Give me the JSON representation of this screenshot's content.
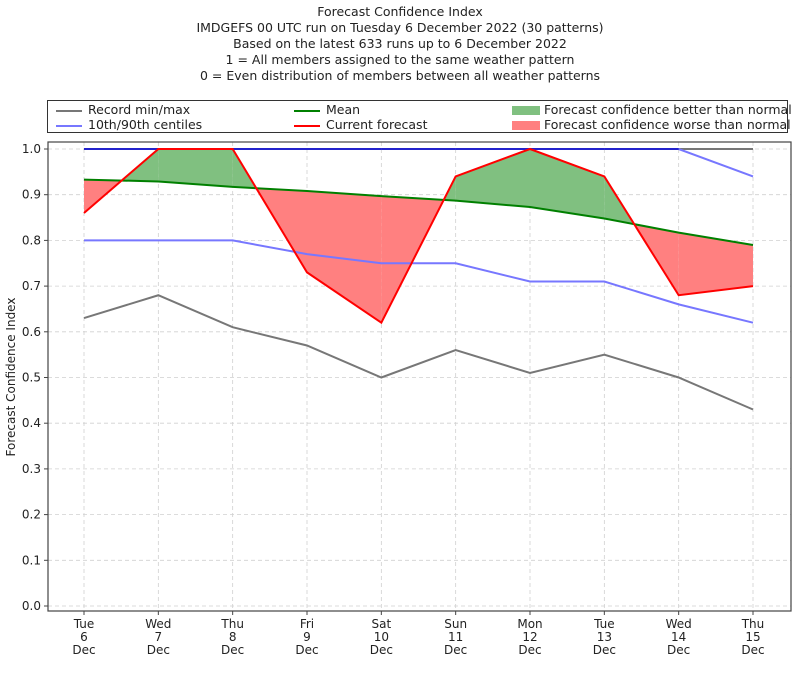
{
  "titles": [
    "Forecast Confidence Index",
    "IMDGEFS 00 UTC run on Tuesday 6 December 2022 (30 patterns)",
    "Based on the latest 633 runs up to 6 December 2022",
    "1 = All members assigned to the same weather pattern",
    "0 = Even distribution of members between all weather patterns"
  ],
  "legend": {
    "record": "Record min/max",
    "centiles": "10th/90th centiles",
    "mean": "Mean",
    "current": "Current forecast",
    "better": "Forecast confidence better than normal",
    "worse": "Forecast confidence worse than normal"
  },
  "colors": {
    "record": "#777777",
    "centiles": "#7777ff",
    "max": "#2222cc",
    "mean": "#008000",
    "current": "#ff0000",
    "better": "#80c080",
    "worse": "#ff8080",
    "grid": "#d0d0d0"
  },
  "chart_data": {
    "type": "line",
    "title": "Forecast Confidence Index",
    "xlabel": "",
    "ylabel": "Forecast Confidence Index",
    "ylim": [
      0,
      1.0
    ],
    "grid": true,
    "legend_position": "top",
    "x_ticks": [
      [
        "Tue",
        "6",
        "Dec"
      ],
      [
        "Wed",
        "7",
        "Dec"
      ],
      [
        "Thu",
        "8",
        "Dec"
      ],
      [
        "Fri",
        "9",
        "Dec"
      ],
      [
        "Sat",
        "10",
        "Dec"
      ],
      [
        "Sun",
        "11",
        "Dec"
      ],
      [
        "Mon",
        "12",
        "Dec"
      ],
      [
        "Tue",
        "13",
        "Dec"
      ],
      [
        "Wed",
        "14",
        "Dec"
      ],
      [
        "Thu",
        "15",
        "Dec"
      ]
    ],
    "y_ticks": [
      "0.0",
      "0.1",
      "0.2",
      "0.3",
      "0.4",
      "0.5",
      "0.6",
      "0.7",
      "0.8",
      "0.9",
      "1.0"
    ],
    "series": [
      {
        "name": "Record max",
        "values": [
          1.0,
          1.0,
          1.0,
          1.0,
          1.0,
          1.0,
          1.0,
          1.0,
          1.0,
          1.0
        ]
      },
      {
        "name": "Record min",
        "values": [
          0.63,
          0.68,
          0.61,
          0.57,
          0.5,
          0.56,
          0.51,
          0.55,
          0.5,
          0.43
        ]
      },
      {
        "name": "90th centile",
        "values": [
          1.0,
          1.0,
          1.0,
          1.0,
          1.0,
          1.0,
          1.0,
          1.0,
          1.0,
          0.94
        ]
      },
      {
        "name": "10th centile",
        "values": [
          0.8,
          0.8,
          0.8,
          0.77,
          0.75,
          0.75,
          0.71,
          0.71,
          0.66,
          0.62
        ]
      },
      {
        "name": "Mean",
        "values": [
          0.933,
          0.929,
          0.917,
          0.908,
          0.897,
          0.887,
          0.873,
          0.848,
          0.817,
          0.79
        ]
      },
      {
        "name": "Current forecast",
        "values": [
          0.86,
          1.0,
          1.0,
          0.73,
          0.62,
          0.94,
          1.0,
          0.94,
          0.68,
          0.7
        ]
      }
    ]
  }
}
